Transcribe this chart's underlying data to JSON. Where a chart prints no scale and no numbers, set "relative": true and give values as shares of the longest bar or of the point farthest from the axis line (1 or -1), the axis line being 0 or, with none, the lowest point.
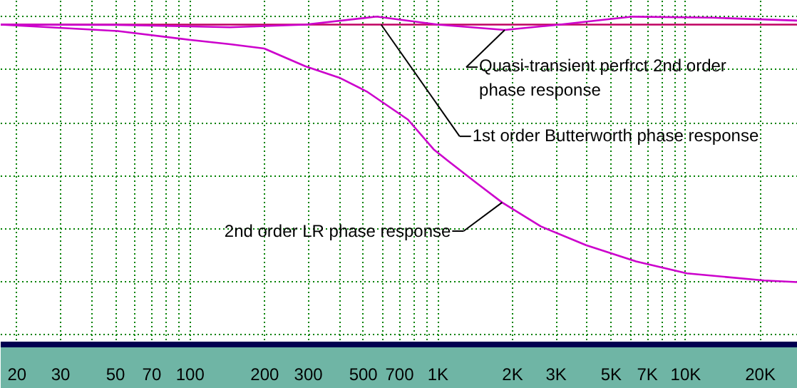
{
  "chart_data": {
    "type": "line",
    "relative": true,
    "log": "x",
    "grid": true,
    "xlim": [
      17.2,
      28300
    ],
    "xticks": [
      20,
      30,
      {
        "value": 40,
        "label": null
      },
      50,
      {
        "value": 60,
        "label": null
      },
      70,
      {
        "value": 80,
        "label": null
      },
      {
        "value": 90,
        "label": null
      },
      100,
      200,
      300,
      {
        "value": 400,
        "label": null
      },
      500,
      {
        "value": 600,
        "label": null
      },
      700,
      {
        "value": 800,
        "label": null
      },
      {
        "value": 900,
        "label": null
      },
      {
        "value": 1000,
        "label": "1K"
      },
      {
        "value": 2000,
        "label": "2K"
      },
      {
        "value": 3000,
        "label": "3K"
      },
      {
        "value": 4000,
        "label": null
      },
      {
        "value": 5000,
        "label": "5K"
      },
      {
        "value": 6000,
        "label": null
      },
      {
        "value": 7000,
        "label": "7K"
      },
      {
        "value": 8000,
        "label": null
      },
      {
        "value": 9000,
        "label": null
      },
      {
        "value": 10000,
        "label": "10K"
      },
      {
        "value": 20000,
        "label": "20K"
      }
    ],
    "series": [
      {
        "color": "#c00060",
        "x": [
          17.2,
          28300
        ],
        "values": [
          0.97,
          0.97
        ]
      },
      {
        "color": "#cc00cc",
        "x": [
          17.2,
          51,
          145,
          292,
          565,
          1000,
          1860,
          3100,
          6100,
          12800,
          28300
        ],
        "values": [
          0.97,
          0.969,
          0.96,
          0.97,
          1,
          0.97,
          0.95,
          0.97,
          1,
          0.996,
          0.985
        ]
      },
      {
        "color": "#cc00cc",
        "x": [
          17.2,
          51,
          99,
          145,
          199,
          292,
          400,
          516,
          757,
          961,
          1100,
          1400,
          1815,
          2600,
          3960,
          6300,
          10100,
          20700,
          28300
        ],
        "values": [
          0.97,
          0.946,
          0.913,
          0.896,
          0.88,
          0.813,
          0.77,
          0.718,
          0.612,
          0.5,
          0.456,
          0.38,
          0.3,
          0.21,
          0.139,
          0.078,
          0.033,
          0.006,
          0
        ]
      }
    ],
    "annotations": [
      {
        "text": "Quasi-transient perfrct 2nd order\nphase response",
        "x": 1860,
        "y": 0.95
      },
      {
        "text": "1st order Butterworth phase response",
        "x": 590,
        "y": 0.97
      },
      {
        "text": "2nd order LR phase response",
        "x": 1815,
        "y": 0.3
      }
    ]
  }
}
